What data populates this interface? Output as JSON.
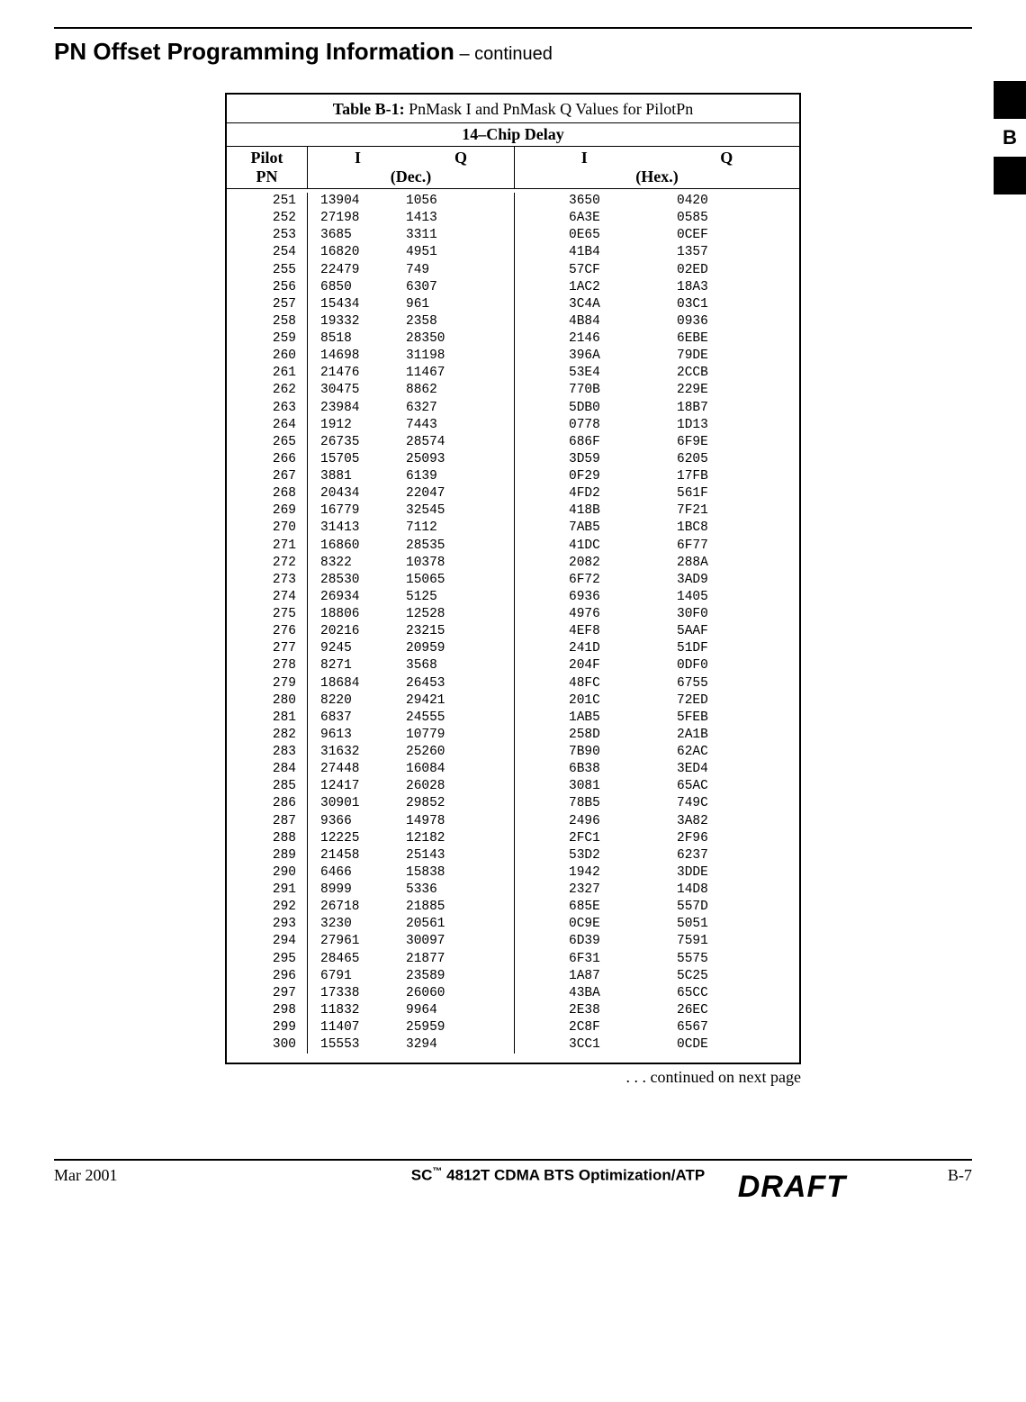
{
  "heading_main": "PN Offset Programming Information",
  "heading_cont": " – continued",
  "side_label": "B",
  "table_title_bold": "Table B-1:",
  "table_title_rest": " PnMask I and PnMask Q Values for PilotPn",
  "chip_delay": "14–Chip  Delay",
  "head_pilot_l1": "Pilot",
  "head_pilot_l2": "PN",
  "head_I": "I",
  "head_Q": "Q",
  "head_dec": "(Dec.)",
  "head_hex": "(Hex.)",
  "rows": [
    {
      "pn": "251",
      "di": "13904",
      "dq": "1056",
      "hi": "3650",
      "hq": "0420"
    },
    {
      "pn": "252",
      "di": "27198",
      "dq": "1413",
      "hi": "6A3E",
      "hq": "0585"
    },
    {
      "pn": "253",
      "di": "3685",
      "dq": "3311",
      "hi": "0E65",
      "hq": "0CEF"
    },
    {
      "pn": "254",
      "di": "16820",
      "dq": "4951",
      "hi": "41B4",
      "hq": "1357"
    },
    {
      "pn": "255",
      "di": "22479",
      "dq": "749",
      "hi": "57CF",
      "hq": "02ED"
    },
    {
      "pn": "256",
      "di": "6850",
      "dq": "6307",
      "hi": "1AC2",
      "hq": "18A3"
    },
    {
      "pn": "257",
      "di": "15434",
      "dq": "961",
      "hi": "3C4A",
      "hq": "03C1"
    },
    {
      "pn": "258",
      "di": "19332",
      "dq": "2358",
      "hi": "4B84",
      "hq": "0936"
    },
    {
      "pn": "259",
      "di": "8518",
      "dq": "28350",
      "hi": "2146",
      "hq": "6EBE"
    },
    {
      "pn": "260",
      "di": "14698",
      "dq": "31198",
      "hi": "396A",
      "hq": "79DE"
    },
    {
      "pn": "261",
      "di": "21476",
      "dq": "11467",
      "hi": "53E4",
      "hq": "2CCB"
    },
    {
      "pn": "262",
      "di": "30475",
      "dq": "8862",
      "hi": "770B",
      "hq": "229E"
    },
    {
      "pn": "263",
      "di": "23984",
      "dq": "6327",
      "hi": "5DB0",
      "hq": "18B7"
    },
    {
      "pn": "264",
      "di": "1912",
      "dq": "7443",
      "hi": "0778",
      "hq": "1D13"
    },
    {
      "pn": "265",
      "di": "26735",
      "dq": "28574",
      "hi": "686F",
      "hq": "6F9E"
    },
    {
      "pn": "266",
      "di": "15705",
      "dq": "25093",
      "hi": "3D59",
      "hq": "6205"
    },
    {
      "pn": "267",
      "di": "3881",
      "dq": "6139",
      "hi": "0F29",
      "hq": "17FB"
    },
    {
      "pn": "268",
      "di": "20434",
      "dq": "22047",
      "hi": "4FD2",
      "hq": "561F"
    },
    {
      "pn": "269",
      "di": "16779",
      "dq": "32545",
      "hi": "418B",
      "hq": "7F21"
    },
    {
      "pn": "270",
      "di": "31413",
      "dq": "7112",
      "hi": "7AB5",
      "hq": "1BC8"
    },
    {
      "pn": "271",
      "di": "16860",
      "dq": "28535",
      "hi": "41DC",
      "hq": "6F77"
    },
    {
      "pn": "272",
      "di": "8322",
      "dq": "10378",
      "hi": "2082",
      "hq": "288A"
    },
    {
      "pn": "273",
      "di": "28530",
      "dq": "15065",
      "hi": "6F72",
      "hq": "3AD9"
    },
    {
      "pn": "274",
      "di": "26934",
      "dq": "5125",
      "hi": "6936",
      "hq": "1405"
    },
    {
      "pn": "275",
      "di": "18806",
      "dq": "12528",
      "hi": "4976",
      "hq": "30F0"
    },
    {
      "pn": "276",
      "di": "20216",
      "dq": "23215",
      "hi": "4EF8",
      "hq": "5AAF"
    },
    {
      "pn": "277",
      "di": "9245",
      "dq": "20959",
      "hi": "241D",
      "hq": "51DF"
    },
    {
      "pn": "278",
      "di": "8271",
      "dq": "3568",
      "hi": "204F",
      "hq": "0DF0"
    },
    {
      "pn": "279",
      "di": "18684",
      "dq": "26453",
      "hi": "48FC",
      "hq": "6755"
    },
    {
      "pn": "280",
      "di": "8220",
      "dq": "29421",
      "hi": "201C",
      "hq": "72ED"
    },
    {
      "pn": "281",
      "di": "6837",
      "dq": "24555",
      "hi": "1AB5",
      "hq": "5FEB"
    },
    {
      "pn": "282",
      "di": "9613",
      "dq": "10779",
      "hi": "258D",
      "hq": "2A1B"
    },
    {
      "pn": "283",
      "di": "31632",
      "dq": "25260",
      "hi": "7B90",
      "hq": "62AC"
    },
    {
      "pn": "284",
      "di": "27448",
      "dq": "16084",
      "hi": "6B38",
      "hq": "3ED4"
    },
    {
      "pn": "285",
      "di": "12417",
      "dq": "26028",
      "hi": "3081",
      "hq": "65AC"
    },
    {
      "pn": "286",
      "di": "30901",
      "dq": "29852",
      "hi": "78B5",
      "hq": "749C"
    },
    {
      "pn": "287",
      "di": "9366",
      "dq": "14978",
      "hi": "2496",
      "hq": "3A82"
    },
    {
      "pn": "288",
      "di": "12225",
      "dq": "12182",
      "hi": "2FC1",
      "hq": "2F96"
    },
    {
      "pn": "289",
      "di": "21458",
      "dq": "25143",
      "hi": "53D2",
      "hq": "6237"
    },
    {
      "pn": "290",
      "di": "6466",
      "dq": "15838",
      "hi": "1942",
      "hq": "3DDE"
    },
    {
      "pn": "291",
      "di": "8999",
      "dq": "5336",
      "hi": "2327",
      "hq": "14D8"
    },
    {
      "pn": "292",
      "di": "26718",
      "dq": "21885",
      "hi": "685E",
      "hq": "557D"
    },
    {
      "pn": "293",
      "di": "3230",
      "dq": "20561",
      "hi": "0C9E",
      "hq": "5051"
    },
    {
      "pn": "294",
      "di": "27961",
      "dq": "30097",
      "hi": "6D39",
      "hq": "7591"
    },
    {
      "pn": "295",
      "di": "28465",
      "dq": "21877",
      "hi": "6F31",
      "hq": "5575"
    },
    {
      "pn": "296",
      "di": "6791",
      "dq": "23589",
      "hi": "1A87",
      "hq": "5C25"
    },
    {
      "pn": "297",
      "di": "17338",
      "dq": "26060",
      "hi": "43BA",
      "hq": "65CC"
    },
    {
      "pn": "298",
      "di": "11832",
      "dq": "9964",
      "hi": "2E38",
      "hq": "26EC"
    },
    {
      "pn": "299",
      "di": "11407",
      "dq": "25959",
      "hi": "2C8F",
      "hq": "6567"
    },
    {
      "pn": "300",
      "di": "15553",
      "dq": "3294",
      "hi": "3CC1",
      "hq": "0CDE"
    }
  ],
  "continued": ". . . continued on next page",
  "footer_date": "Mar 2001",
  "footer_mid_a": "SC",
  "footer_mid_tm": "™",
  "footer_mid_b": "4812T CDMA BTS Optimization/ATP",
  "footer_page": "B-7",
  "draft": "DRAFT"
}
